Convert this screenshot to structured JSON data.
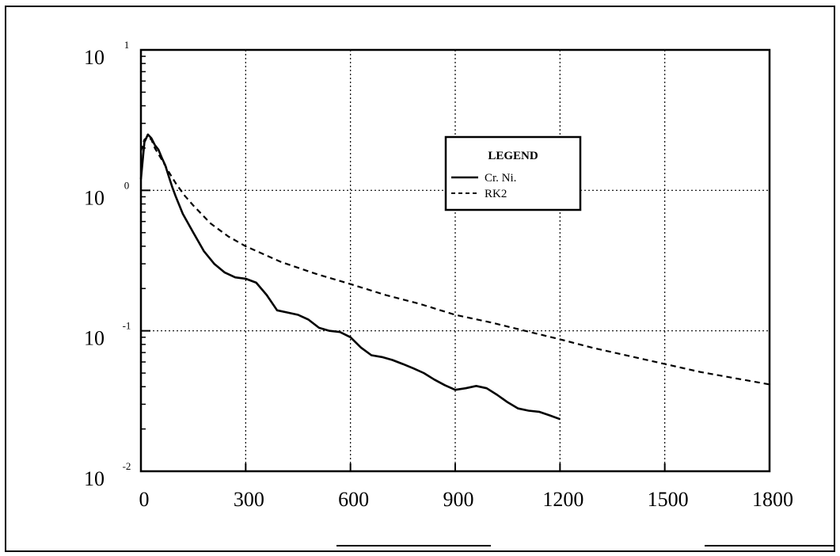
{
  "chart_data": {
    "type": "line",
    "yscale": "log",
    "xlim": [
      0,
      1800
    ],
    "ylim": [
      0.01,
      10
    ],
    "grid": true,
    "legend_position": "top-center",
    "xticks": [
      0,
      300,
      600,
      900,
      1200,
      1500,
      1800
    ],
    "xtick_labels": [
      "0",
      "300",
      "600",
      "900",
      "1200",
      "1500",
      "1800"
    ],
    "yticks": [
      {
        "value": 10,
        "base": "10",
        "exp": "1"
      },
      {
        "value": 1,
        "base": "10",
        "exp": "0"
      },
      {
        "value": 0.1,
        "base": "10",
        "exp": "-1"
      },
      {
        "value": 0.01,
        "base": "10",
        "exp": "-2"
      }
    ],
    "legend": {
      "title": "LEGEND"
    },
    "series": [
      {
        "name": "Cr. Ni.",
        "style": "solid",
        "color": "#000000",
        "x": [
          0,
          10,
          20,
          30,
          40,
          50,
          60,
          70,
          80,
          90,
          100,
          120,
          150,
          180,
          210,
          240,
          270,
          300,
          330,
          360,
          390,
          420,
          450,
          480,
          510,
          540,
          570,
          600,
          630,
          660,
          690,
          720,
          750,
          780,
          810,
          840,
          870,
          900,
          930,
          960,
          990,
          1020,
          1050,
          1080,
          1110,
          1140,
          1170,
          1200
        ],
        "y": [
          1.2,
          2.2,
          2.5,
          2.35,
          2.1,
          1.95,
          1.7,
          1.5,
          1.25,
          1.05,
          0.9,
          0.68,
          0.5,
          0.37,
          0.3,
          0.26,
          0.24,
          0.235,
          0.22,
          0.18,
          0.14,
          0.135,
          0.13,
          0.12,
          0.105,
          0.1,
          0.098,
          0.09,
          0.076,
          0.067,
          0.065,
          0.062,
          0.058,
          0.054,
          0.05,
          0.045,
          0.041,
          0.038,
          0.039,
          0.0405,
          0.039,
          0.035,
          0.031,
          0.028,
          0.027,
          0.0265,
          0.025,
          0.0235
        ]
      },
      {
        "name": "RK2",
        "style": "dashed",
        "color": "#000000",
        "x": [
          0,
          10,
          20,
          30,
          40,
          60,
          80,
          100,
          125,
          150,
          200,
          250,
          300,
          400,
          500,
          600,
          700,
          800,
          900,
          1000,
          1100,
          1200,
          1300,
          1400,
          1500,
          1600,
          1700,
          1800
        ],
        "y": [
          1.9,
          2.3,
          2.4,
          2.3,
          2.0,
          1.65,
          1.35,
          1.12,
          0.92,
          0.78,
          0.58,
          0.47,
          0.4,
          0.31,
          0.255,
          0.215,
          0.18,
          0.155,
          0.13,
          0.115,
          0.1,
          0.087,
          0.075,
          0.066,
          0.058,
          0.051,
          0.046,
          0.0415
        ]
      }
    ]
  }
}
